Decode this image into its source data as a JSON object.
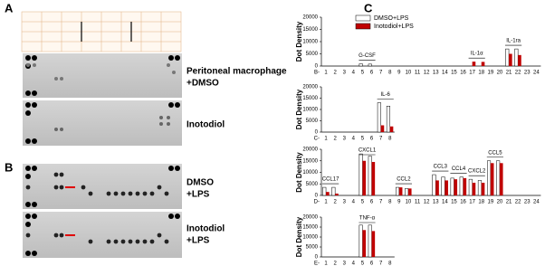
{
  "panel_labels": [
    "A",
    "B",
    "C"
  ],
  "blot_labels": [
    "Peritoneal macrophage",
    "+DMSO",
    "Inotodiol",
    "DMSO",
    "+LPS",
    "Inotodiol",
    "+LPS"
  ],
  "chart_data": [
    {
      "type": "bar",
      "ylabel": "Dot Density",
      "row_label": "B-",
      "categories": [
        "1",
        "2",
        "3",
        "4",
        "5",
        "6",
        "7",
        "8",
        "9",
        "10",
        "11",
        "12",
        "13",
        "14",
        "15",
        "16",
        "17",
        "18",
        "19",
        "20",
        "21",
        "22",
        "23",
        "24"
      ],
      "series": [
        {
          "name": "DMSO+LPS",
          "color": "#ffffff",
          "values": [
            null,
            null,
            null,
            null,
            900,
            800,
            null,
            null,
            null,
            null,
            null,
            null,
            null,
            null,
            null,
            null,
            null,
            null,
            null,
            null,
            7000,
            7000,
            null,
            null
          ]
        },
        {
          "name": "Inotodiol+LPS",
          "color": "#c00000",
          "values": [
            null,
            null,
            null,
            null,
            null,
            null,
            null,
            null,
            null,
            null,
            null,
            null,
            null,
            null,
            null,
            null,
            1800,
            1700,
            null,
            null,
            5000,
            4500,
            null,
            null
          ]
        }
      ],
      "ylim": [
        0,
        20000
      ],
      "yticks": [
        0,
        5000,
        10000,
        15000,
        20000
      ],
      "legend": "upper left",
      "groups": [
        {
          "label": "G-CSF",
          "categories": [
            "5",
            "6"
          ]
        },
        {
          "label": "IL-1α",
          "categories": [
            "17",
            "18"
          ]
        },
        {
          "label": "IL-1ra",
          "categories": [
            "21",
            "22"
          ]
        }
      ]
    },
    {
      "type": "bar",
      "ylabel": "Dot Density",
      "row_label": "C-",
      "categories": [
        "1",
        "2",
        "3",
        "4",
        "5",
        "6",
        "7",
        "8"
      ],
      "series": [
        {
          "color": "#ffffff",
          "values": [
            null,
            null,
            null,
            null,
            null,
            null,
            13000,
            11500
          ]
        },
        {
          "color": "#c00000",
          "values": [
            null,
            null,
            null,
            null,
            null,
            null,
            3000,
            2500
          ]
        }
      ],
      "ylim": [
        0,
        20000
      ],
      "yticks": [
        0,
        5000,
        10000,
        15000,
        20000
      ],
      "groups": [
        {
          "label": "IL-6",
          "categories": [
            "7",
            "8"
          ]
        }
      ]
    },
    {
      "type": "bar",
      "ylabel": "Dot Density",
      "row_label": "D-",
      "categories": [
        "1",
        "2",
        "3",
        "4",
        "5",
        "6",
        "7",
        "8",
        "9",
        "10",
        "11",
        "12",
        "13",
        "14",
        "15",
        "16",
        "17",
        "18",
        "19",
        "20",
        "21",
        "22",
        "23",
        "24"
      ],
      "series": [
        {
          "color": "#ffffff",
          "values": [
            3500,
            3500,
            null,
            null,
            18000,
            17000,
            null,
            null,
            3500,
            3000,
            null,
            null,
            9000,
            8000,
            7500,
            8000,
            7000,
            6500,
            15000,
            15000,
            null,
            null,
            null,
            null
          ]
        },
        {
          "color": "#c00000",
          "values": [
            1500,
            800,
            null,
            null,
            15000,
            14500,
            null,
            null,
            3500,
            3000,
            null,
            null,
            6500,
            6500,
            7000,
            7500,
            5500,
            5500,
            14000,
            14000,
            null,
            null,
            null,
            null
          ]
        }
      ],
      "ylim": [
        0,
        20000
      ],
      "yticks": [
        0,
        5000,
        10000,
        15000,
        20000
      ],
      "groups": [
        {
          "label": "CCL17",
          "categories": [
            "1",
            "2"
          ]
        },
        {
          "label": "CXCL1",
          "categories": [
            "5",
            "6"
          ]
        },
        {
          "label": "CCL2",
          "categories": [
            "9",
            "10"
          ]
        },
        {
          "label": "CCL3",
          "categories": [
            "13",
            "14"
          ]
        },
        {
          "label": "CCL4",
          "categories": [
            "15",
            "16"
          ]
        },
        {
          "label": "CXCL2",
          "categories": [
            "17",
            "18"
          ]
        },
        {
          "label": "CCL5",
          "categories": [
            "19",
            "20"
          ]
        }
      ]
    },
    {
      "type": "bar",
      "ylabel": "Dot Density",
      "row_label": "E-",
      "categories": [
        "1",
        "2",
        "3",
        "4",
        "5",
        "6",
        "7",
        "8"
      ],
      "series": [
        {
          "color": "#ffffff",
          "values": [
            null,
            null,
            null,
            null,
            16000,
            16000,
            null,
            null
          ]
        },
        {
          "color": "#c00000",
          "values": [
            null,
            null,
            null,
            null,
            13500,
            13000,
            null,
            null
          ]
        }
      ],
      "ylim": [
        0,
        20000
      ],
      "yticks": [
        0,
        5000,
        10000,
        15000,
        20000
      ],
      "groups": [
        {
          "label": "TNF-α",
          "categories": [
            "5",
            "6"
          ]
        }
      ]
    }
  ]
}
